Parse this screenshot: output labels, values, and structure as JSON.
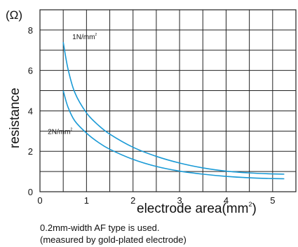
{
  "chart_data": {
    "type": "line",
    "unit_label": "(Ω)",
    "ylabel": "resistance",
    "xlabel": "electrode area(mm",
    "xlabel_sup": "2",
    "xlabel_close": ")",
    "xlim": [
      0,
      5.5
    ],
    "ylim": [
      0,
      9
    ],
    "x_ticks": [
      0,
      1,
      2,
      3,
      4,
      5
    ],
    "y_ticks": [
      0,
      2,
      4,
      6,
      8
    ],
    "grid": true,
    "series": [
      {
        "name": "1N/mm",
        "name_sup": "2",
        "color": "#1a9ad6",
        "x": [
          0.5,
          0.6,
          0.75,
          1.0,
          1.25,
          1.5,
          2.0,
          2.5,
          3.0,
          3.5,
          4.0,
          4.5,
          5.0,
          5.25
        ],
        "y": [
          7.4,
          6.1,
          4.9,
          3.9,
          3.3,
          2.85,
          2.2,
          1.75,
          1.42,
          1.18,
          1.02,
          0.93,
          0.88,
          0.87
        ]
      },
      {
        "name": "2N/mm",
        "name_sup": "2",
        "color": "#1a9ad6",
        "x": [
          0.5,
          0.6,
          0.75,
          1.0,
          1.25,
          1.5,
          2.0,
          2.5,
          3.0,
          3.5,
          4.0,
          4.5,
          5.0,
          5.25
        ],
        "y": [
          5.0,
          4.2,
          3.5,
          2.9,
          2.45,
          2.1,
          1.6,
          1.25,
          1.02,
          0.87,
          0.76,
          0.69,
          0.65,
          0.64
        ]
      }
    ]
  },
  "notes": {
    "line1": "0.2mm-width AF type is used.",
    "line2": "(measured by gold-plated electrode)"
  }
}
